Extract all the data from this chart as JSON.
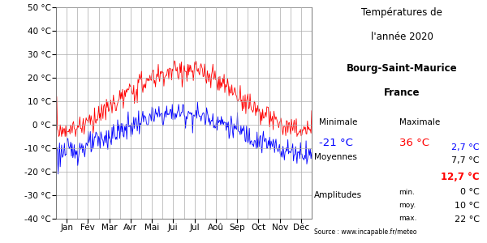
{
  "title_line1": "Températures de",
  "title_line2": "l'année 2020",
  "subtitle_line1": "Bourg-Saint-Maurice",
  "subtitle_line2": "France",
  "months": [
    "Jan",
    "Fév",
    "Mar",
    "Avr",
    "Mai",
    "Jui",
    "Jul",
    "Aoû",
    "Sep",
    "Oct",
    "Nov",
    "Déc"
  ],
  "ylim": [
    -40,
    50
  ],
  "yticks": [
    -40,
    -30,
    -20,
    -10,
    0,
    10,
    20,
    30,
    40,
    50
  ],
  "color_min": "#0000ff",
  "color_max": "#ff0000",
  "color_text": "#000000",
  "background": "#ffffff",
  "minimale_label": "Minimale",
  "maximale_label": "Maximale",
  "min_val_blue": "-21 °C",
  "max_val_red": "36 °C",
  "avg_blue": "2,7 °C",
  "avg_black": "7,7 °C",
  "avg_red": "12,7 °C",
  "moyennes_label": "Moyennes",
  "amplitudes_label": "Amplitudes",
  "amp_min": "0 °C",
  "amp_moy": "10 °C",
  "amp_max": "22 °C",
  "source": "Source : www.incapable.fr/meteo"
}
